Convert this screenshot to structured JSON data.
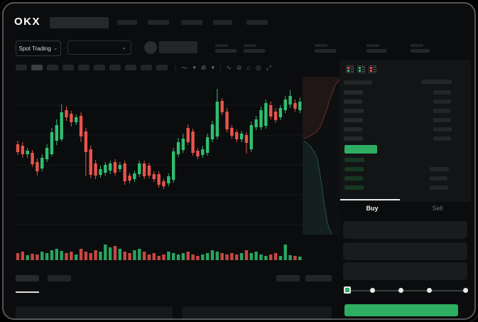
{
  "app": {
    "logo_text": "OKX"
  },
  "colors": {
    "up": "#2fbf71",
    "down": "#e8544c",
    "accent": "#2eae62",
    "bg": "#0b0c0d"
  },
  "header": {
    "nav_item_count": 5
  },
  "market_bar": {
    "market_selector_label": "Spot Trading",
    "stat_block_count": 5
  },
  "chart_toolbar": {
    "timeframe_count": 10,
    "active_timeframe_index": 1,
    "icons": [
      {
        "name": "indicator-icon",
        "glyph": "〜"
      },
      {
        "name": "chevron-down-icon",
        "glyph": "▾"
      },
      {
        "name": "candle-style-icon",
        "glyph": "⋒"
      },
      {
        "name": "chevron-down-icon",
        "glyph": "▾"
      },
      {
        "name": "wave-icon",
        "glyph": "∿"
      },
      {
        "name": "draw-icon",
        "glyph": "⊘"
      },
      {
        "name": "camera-icon",
        "glyph": "⌂"
      },
      {
        "name": "settings-icon",
        "glyph": "◎"
      },
      {
        "name": "fullscreen-icon",
        "glyph": "⤢"
      }
    ]
  },
  "order_book": {
    "view_icons": [
      {
        "name": "book-combined-icon",
        "top": "#e8544c",
        "bottom": "#2fbf71"
      },
      {
        "name": "book-bids-icon",
        "top": "#2fbf71",
        "bottom": "#2fbf71"
      },
      {
        "name": "book-asks-icon",
        "top": "#e8544c",
        "bottom": "#e8544c"
      }
    ],
    "asks": [
      {
        "pw": 27,
        "aw": 25
      },
      {
        "pw": 26,
        "aw": 25
      },
      {
        "pw": 28,
        "aw": 24
      },
      {
        "pw": 27,
        "aw": 25
      },
      {
        "pw": 26,
        "aw": 26
      },
      {
        "pw": 27,
        "aw": 25
      }
    ],
    "bids": [
      {
        "pw": 28,
        "aw": 0
      },
      {
        "pw": 27,
        "aw": 27
      },
      {
        "pw": 26,
        "aw": 25
      },
      {
        "pw": 27,
        "aw": 26
      }
    ],
    "bid_bar_color": "#163822"
  },
  "trade_panel": {
    "tabs": [
      {
        "label": "Buy",
        "active": true
      },
      {
        "label": "Sell",
        "active": false
      }
    ],
    "field_count": 3,
    "slider": {
      "stop_count": 5,
      "active_stop": 0
    }
  },
  "bottom_bar": {
    "tab_count": 2,
    "active_tab_index": 0,
    "button_count": 2,
    "panel_count": 2
  },
  "chart_data": {
    "type": "candlestick",
    "candles": [
      [
        90,
        95,
        106,
        110,
        0
      ],
      [
        92,
        97,
        109,
        114,
        0
      ],
      [
        100,
        104,
        109,
        114,
        1
      ],
      [
        103,
        107,
        123,
        127,
        0
      ],
      [
        115,
        120,
        133,
        139,
        0
      ],
      [
        109,
        114,
        129,
        133,
        1
      ],
      [
        95,
        100,
        116,
        120,
        1
      ],
      [
        72,
        78,
        109,
        112,
        1
      ],
      [
        60,
        68,
        90,
        96,
        1
      ],
      [
        39,
        50,
        88,
        91,
        1
      ],
      [
        42,
        47,
        57,
        62,
        0
      ],
      [
        48,
        52,
        64,
        70,
        0
      ],
      [
        53,
        57,
        64,
        68,
        1
      ],
      [
        50,
        55,
        84,
        92,
        0
      ],
      [
        72,
        77,
        106,
        140,
        0
      ],
      [
        97,
        102,
        138,
        143,
        0
      ],
      [
        117,
        122,
        139,
        144,
        0
      ],
      [
        125,
        130,
        138,
        142,
        1
      ],
      [
        120,
        124,
        135,
        139,
        1
      ],
      [
        118,
        122,
        132,
        137,
        1
      ],
      [
        116,
        120,
        135,
        139,
        0
      ],
      [
        120,
        124,
        130,
        134,
        1
      ],
      [
        118,
        122,
        147,
        152,
        0
      ],
      [
        135,
        139,
        146,
        150,
        0
      ],
      [
        132,
        136,
        144,
        148,
        1
      ],
      [
        118,
        122,
        137,
        141,
        1
      ],
      [
        118,
        122,
        140,
        144,
        0
      ],
      [
        121,
        125,
        139,
        143,
        0
      ],
      [
        133,
        137,
        144,
        148,
        0
      ],
      [
        133,
        137,
        152,
        156,
        0
      ],
      [
        143,
        147,
        154,
        158,
        0
      ],
      [
        136,
        140,
        150,
        154,
        1
      ],
      [
        100,
        105,
        145,
        149,
        1
      ],
      [
        86,
        92,
        109,
        113,
        1
      ],
      [
        80,
        87,
        103,
        107,
        1
      ],
      [
        67,
        72,
        92,
        96,
        0
      ],
      [
        73,
        77,
        107,
        111,
        0
      ],
      [
        100,
        104,
        112,
        116,
        0
      ],
      [
        97,
        102,
        110,
        114,
        1
      ],
      [
        80,
        85,
        107,
        111,
        1
      ],
      [
        62,
        67,
        88,
        92,
        1
      ],
      [
        17,
        35,
        84,
        88,
        1
      ],
      [
        30,
        34,
        50,
        54,
        0
      ],
      [
        44,
        49,
        74,
        78,
        0
      ],
      [
        68,
        72,
        83,
        87,
        0
      ],
      [
        74,
        78,
        88,
        92,
        0
      ],
      [
        76,
        80,
        88,
        92,
        1
      ],
      [
        78,
        82,
        93,
        108,
        0
      ],
      [
        63,
        68,
        102,
        106,
        1
      ],
      [
        55,
        60,
        71,
        75,
        1
      ],
      [
        42,
        47,
        71,
        75,
        1
      ],
      [
        32,
        37,
        69,
        73,
        1
      ],
      [
        35,
        40,
        56,
        60,
        0
      ],
      [
        44,
        49,
        61,
        65,
        0
      ],
      [
        40,
        44,
        57,
        61,
        1
      ],
      [
        27,
        32,
        47,
        51,
        1
      ],
      [
        19,
        27,
        39,
        44,
        1
      ],
      [
        32,
        37,
        45,
        49,
        0
      ],
      [
        29,
        35,
        47,
        51,
        1
      ]
    ],
    "volume": [
      10,
      12,
      7,
      9,
      8,
      12,
      10,
      14,
      16,
      13,
      10,
      12,
      8,
      16,
      12,
      10,
      14,
      12,
      22,
      18,
      20,
      16,
      12,
      10,
      14,
      16,
      12,
      8,
      10,
      6,
      8,
      12,
      10,
      8,
      10,
      12,
      8,
      6,
      8,
      10,
      14,
      12,
      10,
      8,
      10,
      8,
      10,
      14,
      10,
      12,
      8,
      6,
      8,
      10,
      6,
      22,
      7,
      6,
      5
    ],
    "gridlines": [
      40,
      82,
      124,
      166,
      208
    ],
    "depth": {
      "asks": [
        [
          52,
          4
        ],
        [
          46,
          12
        ],
        [
          43,
          20
        ],
        [
          40,
          28
        ],
        [
          37,
          36
        ],
        [
          35,
          44
        ],
        [
          32,
          52
        ],
        [
          29,
          60
        ],
        [
          27,
          66
        ],
        [
          24,
          72
        ],
        [
          19,
          78
        ],
        [
          13,
          82
        ],
        [
          7,
          85
        ],
        [
          2,
          87
        ]
      ],
      "bids": [
        [
          2,
          90
        ],
        [
          7,
          94
        ],
        [
          12,
          99
        ],
        [
          16,
          105
        ],
        [
          20,
          113
        ],
        [
          22,
          122
        ],
        [
          24,
          133
        ],
        [
          26,
          146
        ],
        [
          28,
          158
        ],
        [
          29,
          170
        ],
        [
          31,
          182
        ],
        [
          33,
          194
        ],
        [
          35,
          206
        ],
        [
          38,
          214
        ],
        [
          41,
          222
        ]
      ]
    }
  }
}
